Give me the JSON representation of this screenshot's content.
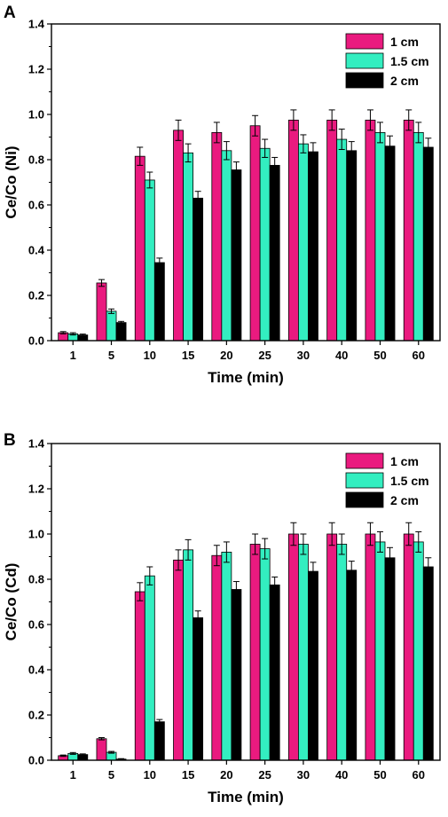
{
  "chart_data": [
    {
      "type": "bar",
      "panel": "A",
      "title": "",
      "xlabel": "Time (min)",
      "ylabel": "Ce/Co (Ni)",
      "ylim": [
        0,
        1.4
      ],
      "yticks": [
        "0.0",
        "0.2",
        "0.4",
        "0.6",
        "0.8",
        "1.0",
        "1.2",
        "1.4"
      ],
      "grid": false,
      "legend_position": "top-right",
      "categories": [
        "1",
        "5",
        "10",
        "15",
        "20",
        "25",
        "30",
        "40",
        "50",
        "60"
      ],
      "series": [
        {
          "name": "1 cm",
          "color": "#ea1a7f",
          "values": [
            0.035,
            0.255,
            0.815,
            0.93,
            0.92,
            0.95,
            0.975,
            0.975,
            0.975,
            0.975
          ],
          "errors": [
            0.005,
            0.015,
            0.04,
            0.045,
            0.045,
            0.045,
            0.045,
            0.045,
            0.045,
            0.045
          ]
        },
        {
          "name": "1.5 cm",
          "color": "#33eec0",
          "values": [
            0.03,
            0.13,
            0.71,
            0.83,
            0.84,
            0.85,
            0.87,
            0.89,
            0.92,
            0.92
          ],
          "errors": [
            0.005,
            0.01,
            0.035,
            0.04,
            0.04,
            0.04,
            0.04,
            0.045,
            0.045,
            0.045
          ]
        },
        {
          "name": "2 cm",
          "color": "#000000",
          "values": [
            0.025,
            0.08,
            0.345,
            0.63,
            0.755,
            0.775,
            0.835,
            0.84,
            0.86,
            0.855
          ],
          "errors": [
            0.004,
            0.005,
            0.02,
            0.03,
            0.035,
            0.035,
            0.04,
            0.04,
            0.045,
            0.04
          ]
        }
      ]
    },
    {
      "type": "bar",
      "panel": "B",
      "title": "",
      "xlabel": "Time (min)",
      "ylabel": "Ce/Co (Cd)",
      "ylim": [
        0,
        1.4
      ],
      "yticks": [
        "0.0",
        "0.2",
        "0.4",
        "0.6",
        "0.8",
        "1.0",
        "1.2",
        "1.4"
      ],
      "grid": false,
      "legend_position": "top-right",
      "categories": [
        "1",
        "5",
        "10",
        "15",
        "20",
        "25",
        "30",
        "40",
        "50",
        "60"
      ],
      "series": [
        {
          "name": "1 cm",
          "color": "#ea1a7f",
          "values": [
            0.02,
            0.095,
            0.745,
            0.885,
            0.905,
            0.955,
            1.0,
            1.0,
            1.0,
            1.0
          ],
          "errors": [
            0.003,
            0.005,
            0.04,
            0.045,
            0.045,
            0.045,
            0.05,
            0.05,
            0.05,
            0.05
          ]
        },
        {
          "name": "1.5 cm",
          "color": "#33eec0",
          "values": [
            0.03,
            0.035,
            0.815,
            0.93,
            0.92,
            0.935,
            0.955,
            0.955,
            0.965,
            0.965
          ],
          "errors": [
            0.004,
            0.004,
            0.04,
            0.045,
            0.045,
            0.045,
            0.045,
            0.045,
            0.045,
            0.045
          ]
        },
        {
          "name": "2 cm",
          "color": "#000000",
          "values": [
            0.025,
            0.005,
            0.17,
            0.63,
            0.755,
            0.775,
            0.835,
            0.84,
            0.895,
            0.855
          ],
          "errors": [
            0.003,
            0.002,
            0.01,
            0.03,
            0.035,
            0.035,
            0.04,
            0.04,
            0.045,
            0.04
          ]
        }
      ]
    }
  ]
}
